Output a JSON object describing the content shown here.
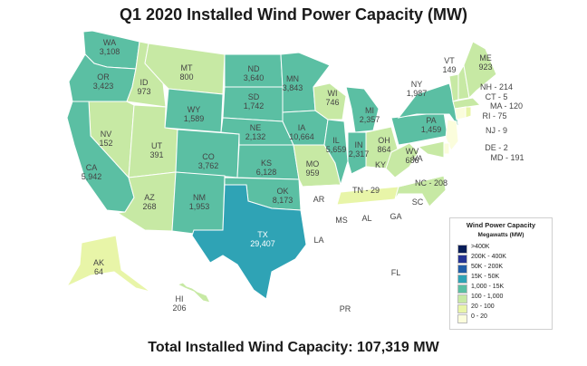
{
  "title": "Q1 2020 Installed Wind Power Capacity (MW)",
  "footer": "Total Installed Wind Capacity: 107,319 MW",
  "legend": {
    "title": "Wind Power Capacity",
    "subtitle": "Megawatts (MW)",
    "items": [
      {
        "label": ">400K",
        "color": "#081d58"
      },
      {
        "label": "200K - 400K",
        "color": "#253494"
      },
      {
        "label": "50K - 200K",
        "color": "#225ea8"
      },
      {
        "label": "15K - 50K",
        "color": "#2fa3b5"
      },
      {
        "label": "1,000 - 15K",
        "color": "#5bbfa3"
      },
      {
        "label": "100 - 1,000",
        "color": "#c7e9a4"
      },
      {
        "label": "20 - 100",
        "color": "#e8f5a8"
      },
      {
        "label": "0 - 20",
        "color": "#fbfddc"
      }
    ]
  },
  "states": [
    {
      "code": "WA",
      "value": "3,108"
    },
    {
      "code": "OR",
      "value": "3,423"
    },
    {
      "code": "ID",
      "value": "973"
    },
    {
      "code": "MT",
      "value": "800"
    },
    {
      "code": "WY",
      "value": "1,589"
    },
    {
      "code": "NV",
      "value": "152"
    },
    {
      "code": "UT",
      "value": "391"
    },
    {
      "code": "CA",
      "value": "5,942"
    },
    {
      "code": "AZ",
      "value": "268"
    },
    {
      "code": "CO",
      "value": "3,762"
    },
    {
      "code": "NM",
      "value": "1,953"
    },
    {
      "code": "ND",
      "value": "3,640"
    },
    {
      "code": "SD",
      "value": "1,742"
    },
    {
      "code": "NE",
      "value": "2,132"
    },
    {
      "code": "KS",
      "value": "6,128"
    },
    {
      "code": "OK",
      "value": "8,173"
    },
    {
      "code": "TX",
      "value": "29,407"
    },
    {
      "code": "MN",
      "value": "3,843"
    },
    {
      "code": "IA",
      "value": "10,664"
    },
    {
      "code": "MO",
      "value": "959"
    },
    {
      "code": "AR",
      "value": ""
    },
    {
      "code": "LA",
      "value": ""
    },
    {
      "code": "WI",
      "value": "746"
    },
    {
      "code": "IL",
      "value": "5,659"
    },
    {
      "code": "MI",
      "value": "2,357"
    },
    {
      "code": "IN",
      "value": "2,317"
    },
    {
      "code": "OH",
      "value": "864"
    },
    {
      "code": "KY",
      "value": ""
    },
    {
      "code": "TN",
      "value": "29"
    },
    {
      "code": "MS",
      "value": ""
    },
    {
      "code": "AL",
      "value": ""
    },
    {
      "code": "GA",
      "value": ""
    },
    {
      "code": "FL",
      "value": ""
    },
    {
      "code": "SC",
      "value": ""
    },
    {
      "code": "NC",
      "value": "208"
    },
    {
      "code": "VA",
      "value": ""
    },
    {
      "code": "WV",
      "value": "686"
    },
    {
      "code": "PA",
      "value": "1,459"
    },
    {
      "code": "NY",
      "value": "1,987"
    },
    {
      "code": "VT",
      "value": "149"
    },
    {
      "code": "ME",
      "value": "923"
    },
    {
      "code": "NH",
      "value": "214"
    },
    {
      "code": "CT",
      "value": "5"
    },
    {
      "code": "MA",
      "value": "120"
    },
    {
      "code": "RI",
      "value": "75"
    },
    {
      "code": "NJ",
      "value": "9"
    },
    {
      "code": "DE",
      "value": "2"
    },
    {
      "code": "MD",
      "value": "191"
    },
    {
      "code": "AK",
      "value": "64"
    },
    {
      "code": "HI",
      "value": "206"
    },
    {
      "code": "PR",
      "value": ""
    }
  ]
}
